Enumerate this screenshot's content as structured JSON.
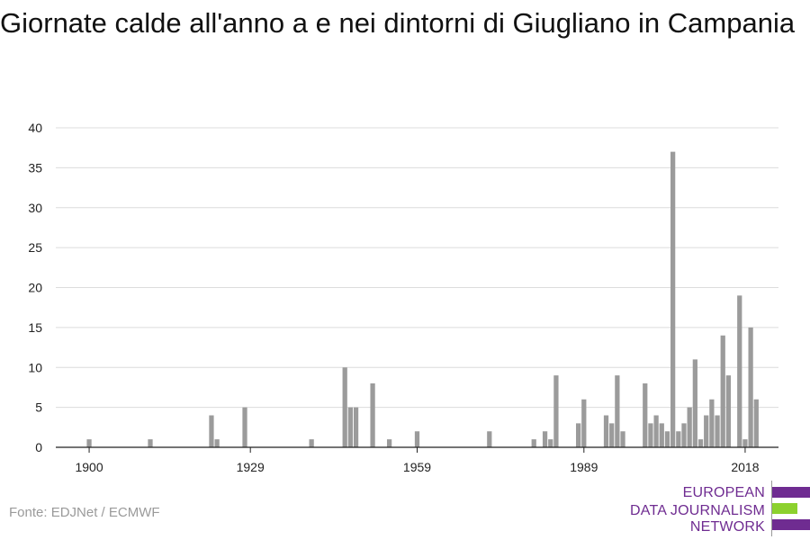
{
  "title": "Giornate calde all'anno a e nei dintorni di Giugliano in Campania",
  "source": "Fonte: EDJNet / ECMWF",
  "logo": {
    "lines": [
      "EUROPEAN",
      "DATA JOURNALISM",
      "NETWORK"
    ],
    "colors": {
      "purple": "#6f2c91",
      "green": "#8cd12e"
    }
  },
  "chart_data": {
    "type": "bar",
    "title": "Giornate calde all'anno a e nei dintorni di Giugliano in Campania",
    "xlabel": "",
    "ylabel": "",
    "x_range": [
      1894,
      2024
    ],
    "ylim": [
      0,
      40
    ],
    "yticks": [
      0,
      5,
      10,
      15,
      20,
      25,
      30,
      35,
      40
    ],
    "xticks": [
      1900,
      1929,
      1959,
      1989,
      2018
    ],
    "grid": true,
    "bar_color": "#9b9b9b",
    "x": [
      1900,
      1911,
      1922,
      1923,
      1928,
      1940,
      1946,
      1947,
      1948,
      1951,
      1954,
      1959,
      1972,
      1980,
      1982,
      1983,
      1984,
      1988,
      1989,
      1993,
      1994,
      1995,
      1996,
      2000,
      2001,
      2002,
      2003,
      2004,
      2005,
      2006,
      2007,
      2008,
      2009,
      2010,
      2011,
      2012,
      2013,
      2014,
      2015,
      2017,
      2018
    ],
    "values": [
      1,
      1,
      4,
      1,
      5,
      1,
      10,
      5,
      5,
      8,
      1,
      2,
      2,
      1,
      2,
      1,
      9,
      3,
      6,
      4,
      3,
      9,
      2,
      8,
      3,
      4,
      3,
      2,
      37,
      2,
      3,
      5,
      11,
      1,
      4,
      6,
      4,
      14,
      9,
      19,
      1
    ],
    "extra": {
      "x": [
        2019,
        2020
      ],
      "values": [
        15,
        6
      ]
    }
  }
}
